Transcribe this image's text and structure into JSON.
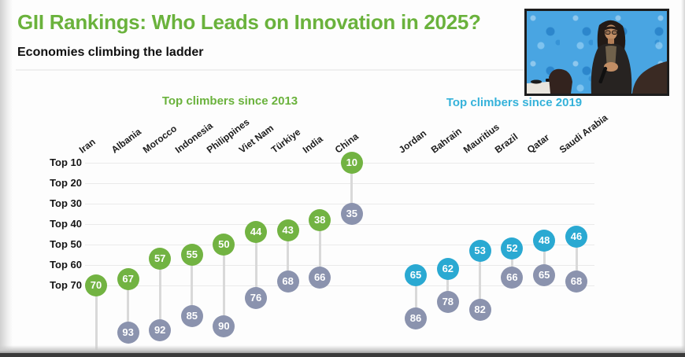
{
  "header": {
    "title": "GII Rankings: Who Leads on Innovation in 2025?",
    "subtitle": "Economies climbing the ladder",
    "title_color": "#6ab23c"
  },
  "chart_data": {
    "type": "scatter",
    "title": "GII Rankings: Who Leads on Innovation in 2025?",
    "subtitle": "Economies climbing the ladder",
    "y_axis": {
      "tick_labels": [
        "Top 10",
        "Top 20",
        "Top 30",
        "Top 40",
        "Top 50",
        "Top 60",
        "Top 70"
      ],
      "tick_values": [
        10,
        20,
        30,
        40,
        50,
        60,
        70
      ],
      "inverted": true,
      "grid": true
    },
    "colors": {
      "previous_rank": "#8b93ae",
      "connector": "#d9d9d9"
    },
    "groups": [
      {
        "label": "Top climbers since 2013",
        "color": "#72b342",
        "label_color": "#6ab23c",
        "points": [
          {
            "country": "Iran",
            "current": 70,
            "previous": null
          },
          {
            "country": "Albania",
            "current": 67,
            "previous": 93
          },
          {
            "country": "Morocco",
            "current": 57,
            "previous": 92
          },
          {
            "country": "Indonesia",
            "current": 55,
            "previous": 85
          },
          {
            "country": "Philippines",
            "current": 50,
            "previous": 90
          },
          {
            "country": "Viet Nam",
            "current": 44,
            "previous": 76
          },
          {
            "country": "Türkiye",
            "current": 43,
            "previous": 68
          },
          {
            "country": "India",
            "current": 38,
            "previous": 66
          },
          {
            "country": "China",
            "current": 10,
            "previous": 35
          }
        ]
      },
      {
        "label": "Top climbers since 2019",
        "color": "#2aa9d2",
        "label_color": "#35b2da",
        "points": [
          {
            "country": "Jordan",
            "current": 65,
            "previous": 86
          },
          {
            "country": "Bahrain",
            "current": 62,
            "previous": 78
          },
          {
            "country": "Mauritius",
            "current": 53,
            "previous": 82
          },
          {
            "country": "Brazil",
            "current": 52,
            "previous": 66
          },
          {
            "country": "Qatar",
            "current": 48,
            "previous": 65
          },
          {
            "country": "Saudi Arabia",
            "current": 46,
            "previous": 68
          }
        ]
      }
    ]
  }
}
